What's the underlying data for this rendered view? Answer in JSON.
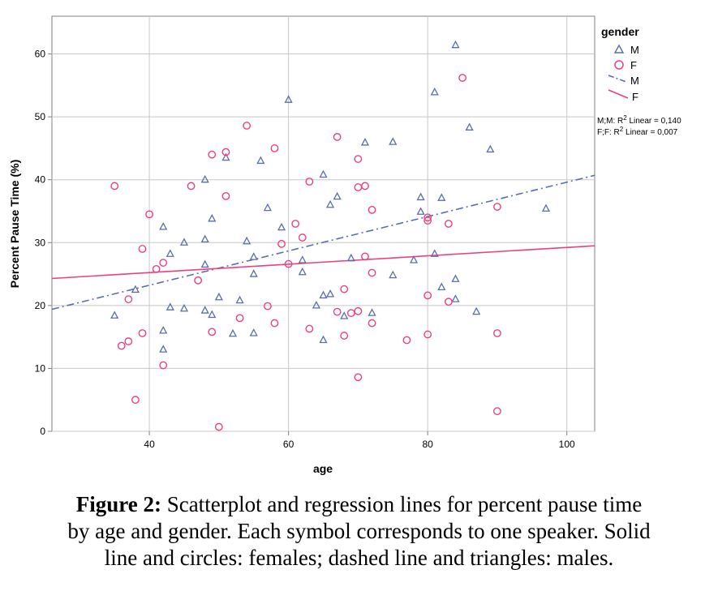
{
  "chart_data": {
    "type": "scatter",
    "xlabel": "age",
    "ylabel": "Percent Pause Time (%)",
    "xlim": [
      26,
      104
    ],
    "ylim": [
      0,
      66
    ],
    "x_ticks": [
      "40",
      "60",
      "80",
      "100"
    ],
    "y_ticks": [
      "0",
      "10",
      "20",
      "30",
      "40",
      "50",
      "60"
    ],
    "grid": true,
    "legend_title": "gender",
    "legend_position": "right",
    "legend_items": [
      {
        "label": "M",
        "kind": "triangle",
        "color": "#5a6eaf"
      },
      {
        "label": "F",
        "kind": "circle",
        "color": "#ef3f7f"
      },
      {
        "label": "M",
        "kind": "dashdot-line",
        "color": "#5a6eaf"
      },
      {
        "label": "F",
        "kind": "solid-line",
        "color": "#ef3f7f"
      }
    ],
    "fit_notes": [
      {
        "prefix": "M;M: R",
        "sup": "2",
        "suffix": " Linear = 0,140"
      },
      {
        "prefix": "F;F: R",
        "sup": "2",
        "suffix": " Linear = 0,007"
      }
    ],
    "series": [
      {
        "name": "M",
        "marker": "triangle",
        "color": "#5a6eaf",
        "points": [
          [
            35,
            18.4
          ],
          [
            38,
            22.5
          ],
          [
            42,
            32.5
          ],
          [
            42,
            16
          ],
          [
            42,
            13
          ],
          [
            43,
            28.2
          ],
          [
            43,
            19.7
          ],
          [
            45,
            30
          ],
          [
            45,
            19.5
          ],
          [
            48,
            40
          ],
          [
            48,
            30.5
          ],
          [
            48,
            26.5
          ],
          [
            48,
            19.2
          ],
          [
            49,
            33.8
          ],
          [
            49,
            18.5
          ],
          [
            50,
            21.3
          ],
          [
            51,
            43.5
          ],
          [
            52,
            15.5
          ],
          [
            53,
            20.8
          ],
          [
            54,
            30.2
          ],
          [
            55,
            27.7
          ],
          [
            55,
            25
          ],
          [
            55,
            15.6
          ],
          [
            56,
            43
          ],
          [
            57,
            35.5
          ],
          [
            59,
            32.4
          ],
          [
            60,
            52.7
          ],
          [
            62,
            27.2
          ],
          [
            62,
            25.3
          ],
          [
            64,
            20
          ],
          [
            65,
            40.8
          ],
          [
            65,
            21.6
          ],
          [
            65,
            14.5
          ],
          [
            66,
            36
          ],
          [
            66,
            21.8
          ],
          [
            67,
            37.3
          ],
          [
            68,
            18.3
          ],
          [
            69,
            27.5
          ],
          [
            71,
            45.9
          ],
          [
            72,
            18.8
          ],
          [
            75,
            46
          ],
          [
            75,
            24.8
          ],
          [
            78,
            27.2
          ],
          [
            79,
            37.2
          ],
          [
            79,
            34.9
          ],
          [
            81,
            53.9
          ],
          [
            81,
            28.2
          ],
          [
            82,
            37.1
          ],
          [
            82,
            22.9
          ],
          [
            84,
            61.4
          ],
          [
            84,
            24.2
          ],
          [
            84,
            21
          ],
          [
            86,
            48.3
          ],
          [
            87,
            19
          ],
          [
            89,
            44.8
          ],
          [
            97,
            35.4
          ]
        ]
      },
      {
        "name": "F",
        "marker": "circle",
        "color": "#ef3f7f",
        "points": [
          [
            35,
            39
          ],
          [
            36,
            13.6
          ],
          [
            37,
            21
          ],
          [
            37,
            14.3
          ],
          [
            38,
            5
          ],
          [
            39,
            29
          ],
          [
            39,
            15.6
          ],
          [
            40,
            34.5
          ],
          [
            41,
            25.8
          ],
          [
            42,
            26.8
          ],
          [
            42,
            10.5
          ],
          [
            46,
            39
          ],
          [
            47,
            24
          ],
          [
            49,
            44
          ],
          [
            49,
            15.8
          ],
          [
            50,
            0.7
          ],
          [
            51,
            44.4
          ],
          [
            51,
            37.4
          ],
          [
            53,
            18
          ],
          [
            54,
            48.6
          ],
          [
            57,
            19.9
          ],
          [
            58,
            45
          ],
          [
            58,
            17.2
          ],
          [
            59,
            29.8
          ],
          [
            60,
            26.6
          ],
          [
            61,
            33
          ],
          [
            62,
            30.8
          ],
          [
            63,
            39.7
          ],
          [
            63,
            16.3
          ],
          [
            67,
            46.8
          ],
          [
            67,
            19
          ],
          [
            68,
            22.6
          ],
          [
            68,
            15.2
          ],
          [
            69,
            18.8
          ],
          [
            70,
            43.3
          ],
          [
            70,
            38.8
          ],
          [
            70,
            19.1
          ],
          [
            70,
            8.6
          ],
          [
            71,
            39
          ],
          [
            71,
            27.8
          ],
          [
            72,
            35.2
          ],
          [
            72,
            25.2
          ],
          [
            72,
            17.2
          ],
          [
            77,
            14.5
          ],
          [
            80,
            34
          ],
          [
            80,
            33.5
          ],
          [
            80,
            21.6
          ],
          [
            80,
            15.4
          ],
          [
            83,
            33
          ],
          [
            83,
            20.6
          ],
          [
            85,
            56.2
          ],
          [
            90,
            35.7
          ],
          [
            90,
            15.6
          ],
          [
            90,
            3.2
          ]
        ]
      }
    ],
    "fit_lines": [
      {
        "name": "M",
        "style": "dashdot",
        "color": "#5a6eaf",
        "x": [
          26,
          104
        ],
        "y": [
          19.4,
          40.7
        ]
      },
      {
        "name": "F",
        "style": "solid",
        "color": "#ef3f7f",
        "x": [
          26,
          104
        ],
        "y": [
          24.3,
          29.5
        ]
      }
    ]
  },
  "caption": {
    "label": "Figure 2:",
    "line1": " Scatterplot and regression lines for percent pause time",
    "line2": "by age and gender. Each symbol corresponds to one speaker. Solid",
    "line3": "line and circles: females; dashed line and triangles: males."
  }
}
